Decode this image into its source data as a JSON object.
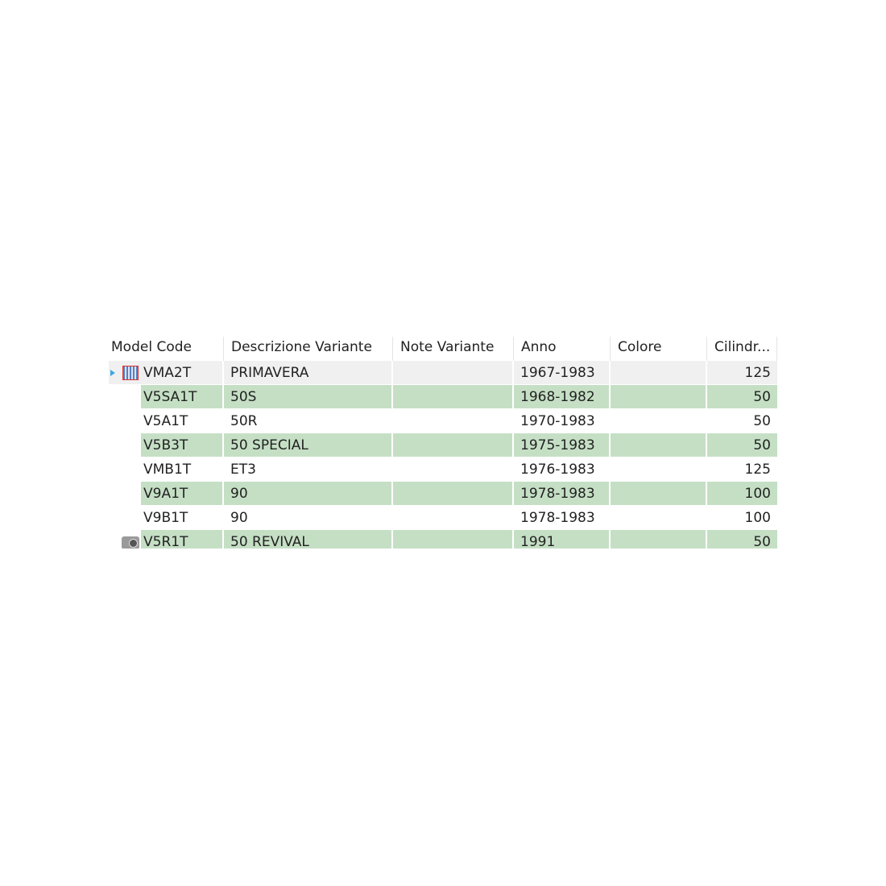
{
  "grid": {
    "columns": [
      "Model Code",
      "Descrizione Variante",
      "Note Variante",
      "Anno",
      "Colore",
      "Cilindr..."
    ],
    "rows": [
      {
        "code": "VMA2T",
        "desc": "PRIMAVERA",
        "note": "",
        "anno": "1967-1983",
        "colore": "",
        "cil": "125",
        "icon": "grid-image-icon",
        "state": "selected",
        "expander": true
      },
      {
        "code": "V5SA1T",
        "desc": "50S",
        "note": "",
        "anno": "1968-1982",
        "colore": "",
        "cil": "50",
        "state": "green"
      },
      {
        "code": "V5A1T",
        "desc": "50R",
        "note": "",
        "anno": "1970-1983",
        "colore": "",
        "cil": "50",
        "state": "white"
      },
      {
        "code": "V5B3T",
        "desc": "50 SPECIAL",
        "note": "",
        "anno": "1975-1983",
        "colore": "",
        "cil": "50",
        "state": "green"
      },
      {
        "code": "VMB1T",
        "desc": "ET3",
        "note": "",
        "anno": "1976-1983",
        "colore": "",
        "cil": "125",
        "state": "white"
      },
      {
        "code": "V9A1T",
        "desc": "90",
        "note": "",
        "anno": "1978-1983",
        "colore": "",
        "cil": "100",
        "state": "green"
      },
      {
        "code": "V9B1T",
        "desc": "90",
        "note": "",
        "anno": "1978-1983",
        "colore": "",
        "cil": "100",
        "state": "white"
      },
      {
        "code": "V5R1T",
        "desc": "50 REVIVAL",
        "note": "",
        "anno": "1991",
        "colore": "",
        "cil": "50",
        "icon": "camera-icon",
        "state": "green"
      }
    ],
    "colors": {
      "green_row": "#c5dfc5",
      "selected_row": "#f0f0f0",
      "expander": "#3ea7e0"
    }
  }
}
